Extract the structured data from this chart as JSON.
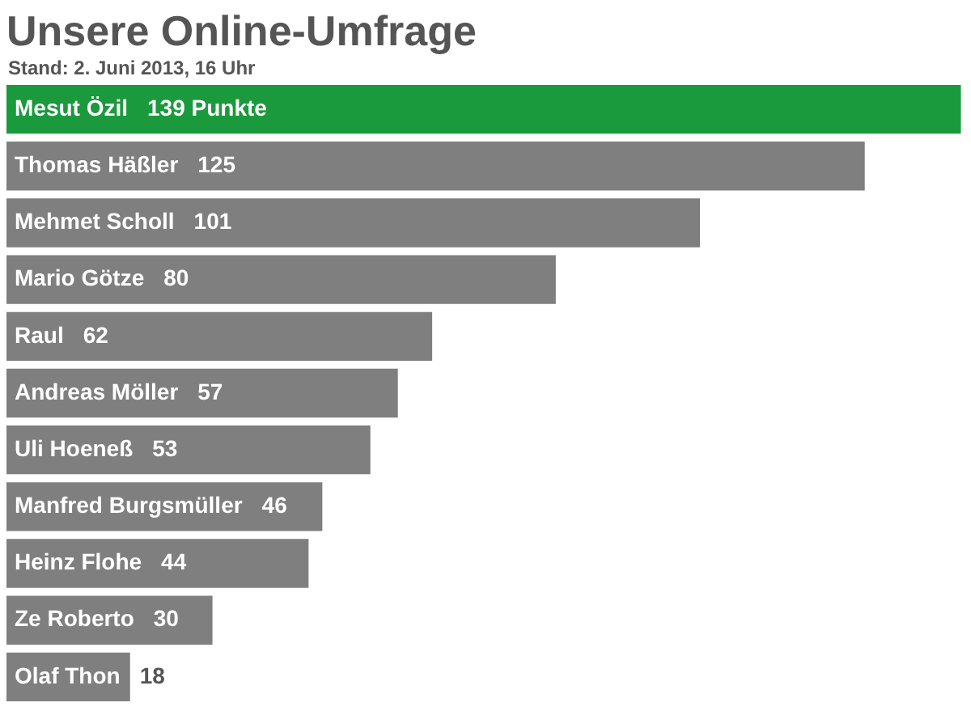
{
  "chart_data": {
    "type": "bar",
    "orientation": "horizontal",
    "title": "Unsere Online-Umfrage",
    "subtitle": "Stand: 2. Juni 2013, 16 Uhr",
    "categories": [
      "Mesut Özil",
      "Thomas Häßler",
      "Mehmet Scholl",
      "Mario Götze",
      "Raul",
      "Andreas Möller",
      "Uli Hoeneß",
      "Manfred Burgsmüller",
      "Heinz Flohe",
      "Ze Roberto",
      "Olaf Thon"
    ],
    "values": [
      139,
      125,
      101,
      80,
      62,
      57,
      53,
      46,
      44,
      30,
      18
    ],
    "value_labels": [
      "139 Punkte",
      "125",
      "101",
      "80",
      "62",
      "57",
      "53",
      "46",
      "44",
      "30",
      "18"
    ],
    "colors": [
      "#1a9a3c",
      "#7f7f80",
      "#7f7f80",
      "#7f7f80",
      "#7f7f80",
      "#7f7f80",
      "#7f7f80",
      "#7f7f80",
      "#7f7f80",
      "#7f7f80",
      "#7f7f80"
    ]
  }
}
